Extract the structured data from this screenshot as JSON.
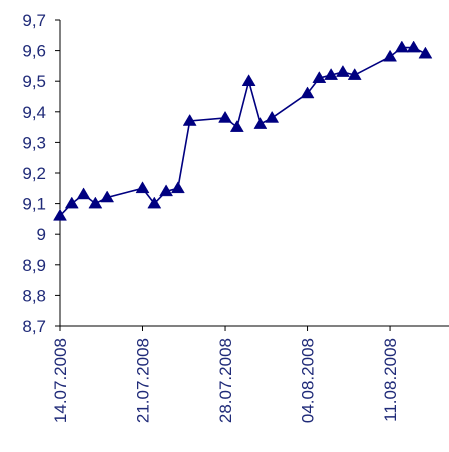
{
  "chart_data": {
    "type": "line",
    "title": "",
    "xlabel": "",
    "ylabel": "",
    "ylim": [
      8.7,
      9.7
    ],
    "y_ticks": [
      "8,7",
      "8,8",
      "8,9",
      "9",
      "9,1",
      "9,2",
      "9,3",
      "9,4",
      "9,5",
      "9,6",
      "9,7"
    ],
    "y_tick_values": [
      8.7,
      8.8,
      8.9,
      9.0,
      9.1,
      9.2,
      9.3,
      9.4,
      9.5,
      9.6,
      9.7
    ],
    "xlim": [
      "14.07.2008",
      "16.08.2008"
    ],
    "x_ticks": [
      "14.07.2008",
      "21.07.2008",
      "28.07.2008",
      "04.08.2008",
      "11.08.2008"
    ],
    "grid": false,
    "legend": "none",
    "colors": {
      "series": "#000080",
      "labels": "#1f2a78",
      "axis": "#000000"
    },
    "series": [
      {
        "marker": "triangle",
        "x": [
          "14.07.2008",
          "15.07.2008",
          "16.07.2008",
          "17.07.2008",
          "18.07.2008",
          "21.07.2008",
          "22.07.2008",
          "23.07.2008",
          "24.07.2008",
          "25.07.2008",
          "28.07.2008",
          "29.07.2008",
          "30.07.2008",
          "31.07.2008",
          "01.08.2008",
          "04.08.2008",
          "05.08.2008",
          "06.08.2008",
          "07.08.2008",
          "08.08.2008",
          "11.08.2008",
          "12.08.2008",
          "13.08.2008",
          "14.08.2008"
        ],
        "values": [
          9.06,
          9.1,
          9.13,
          9.1,
          9.12,
          9.15,
          9.1,
          9.14,
          9.15,
          9.37,
          9.38,
          9.35,
          9.5,
          9.36,
          9.38,
          9.46,
          9.51,
          9.52,
          9.53,
          9.52,
          9.58,
          9.61,
          9.61,
          9.59
        ]
      }
    ]
  }
}
